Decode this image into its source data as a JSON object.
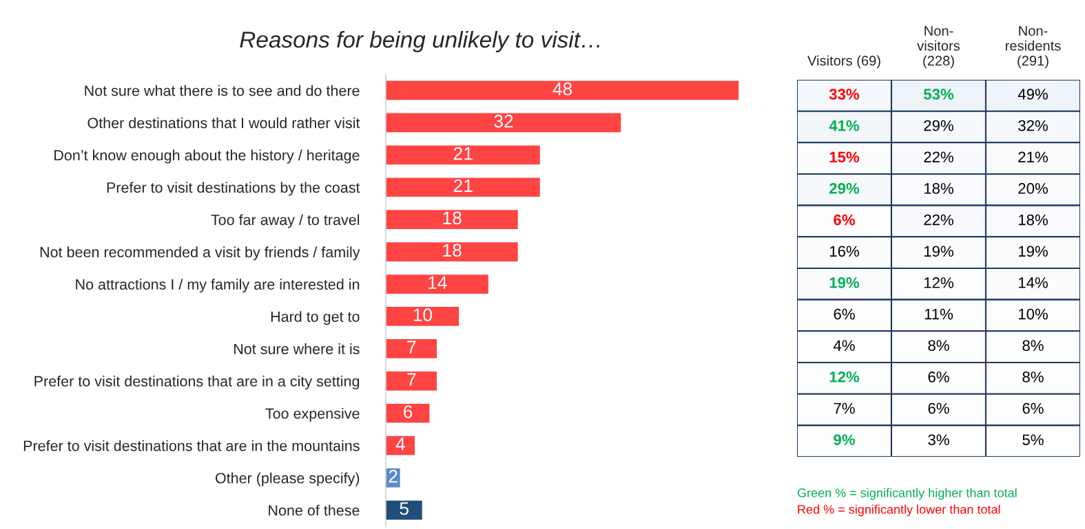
{
  "chart_data": [
    {
      "type": "bar",
      "orientation": "horizontal",
      "title": "Reasons for being unlikely to visit…",
      "categories": [
        "Not sure what there is to see and do there",
        "Other destinations that I would rather visit",
        "Don’t know enough about the history / heritage",
        "Prefer to visit destinations by the coast",
        "Too far away / to travel",
        "Not been recommended a visit by friends / family",
        "No attractions I / my family are interested in",
        "Hard to get to",
        "Not sure where it is",
        "Prefer to visit destinations that are in a city setting",
        "Too expensive",
        "Prefer to visit destinations that are in the mountains",
        "Other (please specify)",
        "None of these"
      ],
      "values": [
        48,
        32,
        21,
        21,
        18,
        18,
        14,
        10,
        7,
        7,
        6,
        4,
        2,
        5
      ],
      "colors": [
        "#ff4444",
        "#ff4444",
        "#ff4444",
        "#ff4444",
        "#ff4444",
        "#ff4444",
        "#ff4444",
        "#ff4444",
        "#ff4444",
        "#ff4444",
        "#ff4444",
        "#ff4444",
        "#5b8ac6",
        "#1f4e79"
      ],
      "data_labels": true,
      "tick_labels": "y"
    },
    {
      "type": "heatmap",
      "categories": [
        "Visitors (69)",
        "Non-\nvisitors\n(228)",
        "Non-\nresidents\n(291)"
      ],
      "y_categories": [
        null,
        null,
        null,
        null,
        null,
        null,
        null,
        null,
        null,
        null,
        null,
        null
      ],
      "cells": [
        [
          33,
          53,
          49
        ],
        [
          41,
          29,
          32
        ],
        [
          15,
          22,
          21
        ],
        [
          29,
          18,
          20
        ],
        [
          6,
          22,
          18
        ],
        [
          16,
          19,
          19
        ],
        [
          19,
          12,
          14
        ],
        [
          6,
          11,
          10
        ],
        [
          4,
          8,
          8
        ],
        [
          12,
          6,
          8
        ],
        [
          7,
          6,
          6
        ],
        [
          9,
          3,
          5
        ]
      ],
      "cell_labels": [
        [
          "33%",
          "53%",
          "49%"
        ],
        [
          "41%",
          "29%",
          "32%"
        ],
        [
          "15%",
          "22%",
          "21%"
        ],
        [
          "29%",
          "18%",
          "20%"
        ],
        [
          "6%",
          "22%",
          "18%"
        ],
        [
          "16%",
          "19%",
          "19%"
        ],
        [
          "19%",
          "12%",
          "14%"
        ],
        [
          "6%",
          "11%",
          "10%"
        ],
        [
          "4%",
          "8%",
          "8%"
        ],
        [
          "12%",
          "6%",
          "8%"
        ],
        [
          "7%",
          "6%",
          "6%"
        ],
        [
          "9%",
          "3%",
          "5%"
        ]
      ],
      "colors": [
        [
          "#ff0000",
          "#00b050",
          "#000000"
        ],
        [
          "#00b050",
          "#000000",
          "#000000"
        ],
        [
          "#ff0000",
          "#000000",
          "#000000"
        ],
        [
          "#00b050",
          "#000000",
          "#000000"
        ],
        [
          "#ff0000",
          "#000000",
          "#000000"
        ],
        [
          "#000000",
          "#000000",
          "#000000"
        ],
        [
          "#00b050",
          "#000000",
          "#000000"
        ],
        [
          "#000000",
          "#000000",
          "#000000"
        ],
        [
          "#000000",
          "#000000",
          "#000000"
        ],
        [
          "#00b050",
          "#000000",
          "#000000"
        ],
        [
          "#000000",
          "#000000",
          "#000000"
        ],
        [
          "#00b050",
          "#000000",
          "#000000"
        ]
      ],
      "tick_labels": "x",
      "annotations": [
        "Green % = significantly higher than total",
        "Red % = significantly lower than total"
      ]
    }
  ]
}
